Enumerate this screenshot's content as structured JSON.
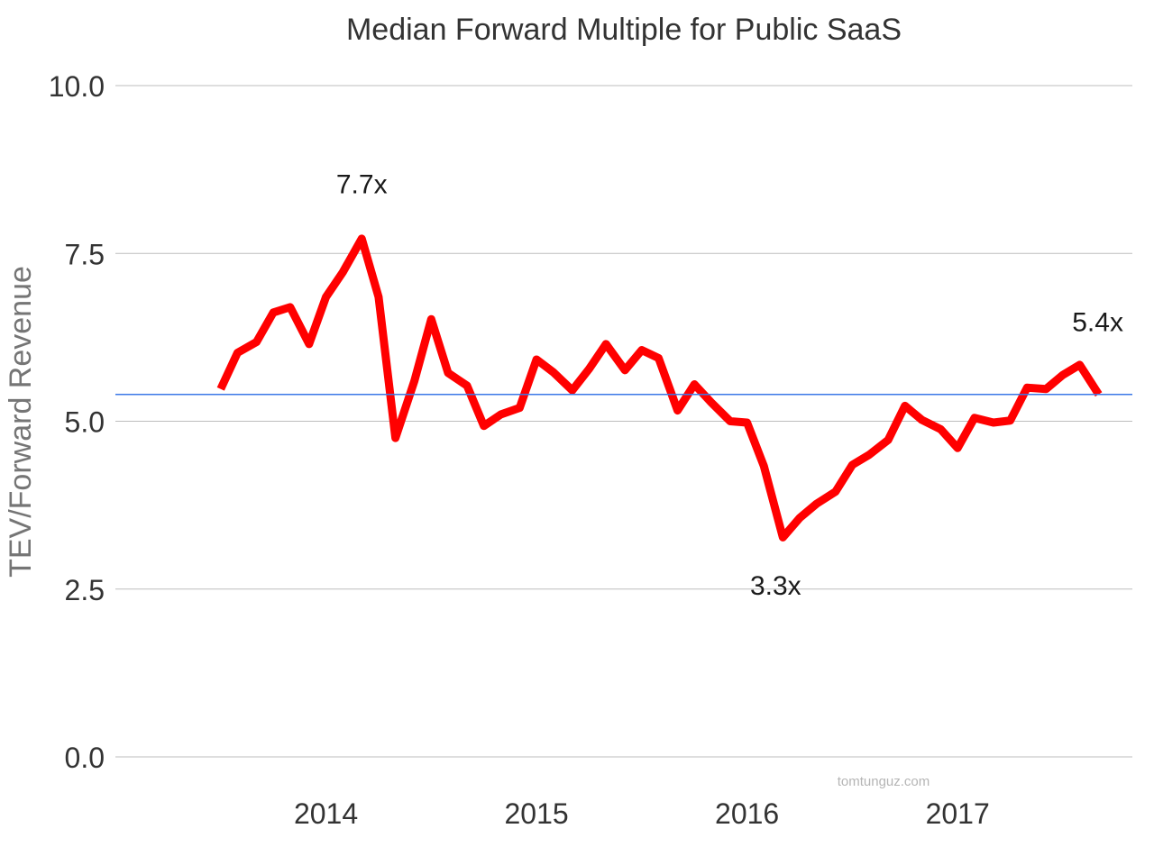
{
  "chart_data": {
    "type": "line",
    "title": "Median Forward Multiple for Public SaaS",
    "xlabel": "",
    "ylabel": "TEV/Forward Revenue",
    "ylim": [
      0,
      10
    ],
    "yticks": [
      "10.0",
      "7.5",
      "5.0",
      "2.5",
      "0.0"
    ],
    "ytick_values": [
      10,
      7.5,
      5,
      2.5,
      0
    ],
    "xticks": [
      "2014",
      "2015",
      "2016",
      "2017"
    ],
    "xtick_values": [
      2014.0,
      2015.0,
      2016.0,
      2017.0
    ],
    "grid": true,
    "legend": "none",
    "series": [
      {
        "color": "#ff0000",
        "x": [
          2013.5,
          2013.58,
          2013.67,
          2013.75,
          2013.83,
          2013.92,
          2014.0,
          2014.08,
          2014.17,
          2014.25,
          2014.33,
          2014.42,
          2014.5,
          2014.58,
          2014.67,
          2014.75,
          2014.83,
          2014.92,
          2015.0,
          2015.08,
          2015.17,
          2015.25,
          2015.33,
          2015.42,
          2015.5,
          2015.58,
          2015.67,
          2015.75,
          2015.83,
          2015.92,
          2016.0,
          2016.08,
          2016.17,
          2016.25,
          2016.33,
          2016.42,
          2016.5,
          2016.58,
          2016.67,
          2016.75,
          2016.83,
          2016.92,
          2017.0,
          2017.08,
          2017.17,
          2017.25,
          2017.33,
          2017.42,
          2017.5,
          2017.58,
          2017.67
        ],
        "values": [
          5.48,
          6.02,
          6.18,
          6.62,
          6.7,
          6.15,
          6.85,
          7.22,
          7.72,
          6.85,
          4.75,
          5.6,
          6.52,
          5.72,
          5.53,
          4.93,
          5.1,
          5.2,
          5.92,
          5.73,
          5.46,
          5.78,
          6.15,
          5.76,
          6.06,
          5.94,
          5.16,
          5.55,
          5.28,
          5.0,
          4.98,
          4.33,
          3.27,
          3.56,
          3.77,
          3.95,
          4.35,
          4.5,
          4.72,
          5.23,
          5.02,
          4.88,
          4.6,
          5.05,
          4.98,
          5.01,
          5.5,
          5.48,
          5.69,
          5.84,
          5.4
        ]
      },
      {
        "color": "#3b78e7",
        "x": [
          2013.0,
          2017.83
        ],
        "values": [
          5.4,
          5.4
        ]
      }
    ],
    "annotations": [
      {
        "text": "7.7x",
        "x": 2014.17,
        "y": 7.7
      },
      {
        "text": "3.3x",
        "x": 2016.17,
        "y": 3.3
      },
      {
        "text": "5.4x",
        "x": 2017.58,
        "y": 5.4
      }
    ]
  },
  "watermark": "tomtunguz.com"
}
